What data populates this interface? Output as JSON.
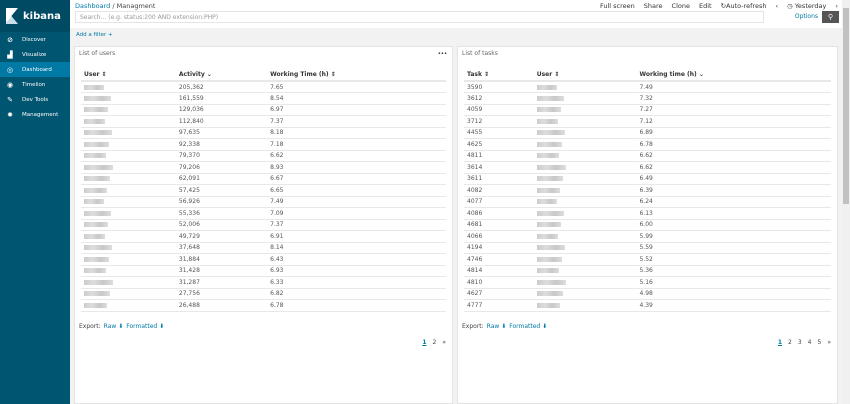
{
  "app": {
    "name": "kibana"
  },
  "sidebar": {
    "items": [
      {
        "label": "Discover",
        "icon": "compass-icon",
        "glyph": "⊘"
      },
      {
        "label": "Visualize",
        "icon": "bar-chart-icon",
        "glyph": "▟"
      },
      {
        "label": "Dashboard",
        "icon": "dashboard-icon",
        "glyph": "◎",
        "active": true
      },
      {
        "label": "Timelion",
        "icon": "timelion-icon",
        "glyph": "◉"
      },
      {
        "label": "Dev Tools",
        "icon": "wrench-icon",
        "glyph": "✎"
      },
      {
        "label": "Management",
        "icon": "gear-icon",
        "glyph": "✹"
      }
    ]
  },
  "header": {
    "breadcrumb": [
      "Dashboard",
      "Managment"
    ],
    "sep": "/",
    "menu": [
      "Full screen",
      "Share",
      "Clone",
      "Edit",
      "Auto-refresh"
    ],
    "time": "Yesterday",
    "search_placeholder": "Search... (e.g. status:200 AND extension:PHP)",
    "options": "Options",
    "add_filter": "Add a filter +"
  },
  "panels": [
    {
      "title": "List of users",
      "columns": [
        "User ⇕",
        "Activity ⌄",
        "Working Time (h) ⇕"
      ],
      "rows": [
        [
          "205,362",
          "7.65"
        ],
        [
          "161,559",
          "8.54"
        ],
        [
          "129,036",
          "6.97"
        ],
        [
          "112,840",
          "7.37"
        ],
        [
          "97,635",
          "8.18"
        ],
        [
          "92,338",
          "7.18"
        ],
        [
          "79,370",
          "6.62"
        ],
        [
          "79,206",
          "8.93"
        ],
        [
          "62,091",
          "6.67"
        ],
        [
          "57,425",
          "6.65"
        ],
        [
          "56,926",
          "7.49"
        ],
        [
          "55,336",
          "7.09"
        ],
        [
          "52,006",
          "7.37"
        ],
        [
          "49,729",
          "6.91"
        ],
        [
          "37,648",
          "8.14"
        ],
        [
          "31,884",
          "6.43"
        ],
        [
          "31,428",
          "6.93"
        ],
        [
          "31,287",
          "6.33"
        ],
        [
          "27,756",
          "6.82"
        ],
        [
          "26,488",
          "6.78"
        ]
      ],
      "export": "Export:",
      "raw": "Raw ⬇",
      "formatted": "Formatted ⬇",
      "pages": [
        "1",
        "2",
        "»"
      ]
    },
    {
      "title": "List of tasks",
      "columns": [
        "Task ⇕",
        "User ⇕",
        "Working time (h) ⌄"
      ],
      "rows": [
        [
          "3590",
          "7.49"
        ],
        [
          "3612",
          "7.32"
        ],
        [
          "4059",
          "7.27"
        ],
        [
          "3712",
          "7.12"
        ],
        [
          "4455",
          "6.89"
        ],
        [
          "4625",
          "6.78"
        ],
        [
          "4811",
          "6.62"
        ],
        [
          "3614",
          "6.62"
        ],
        [
          "3611",
          "6.49"
        ],
        [
          "4082",
          "6.39"
        ],
        [
          "4077",
          "6.24"
        ],
        [
          "4086",
          "6.13"
        ],
        [
          "4681",
          "6.00"
        ],
        [
          "4066",
          "5.99"
        ],
        [
          "4194",
          "5.59"
        ],
        [
          "4746",
          "5.52"
        ],
        [
          "4814",
          "5.36"
        ],
        [
          "4810",
          "5.16"
        ],
        [
          "4627",
          "4.98"
        ],
        [
          "4777",
          "4.39"
        ]
      ],
      "export": "Export:",
      "raw": "Raw ⬇",
      "formatted": "Formatted ⬇",
      "pages": [
        "1",
        "2",
        "3",
        "4",
        "5",
        "»"
      ]
    }
  ]
}
